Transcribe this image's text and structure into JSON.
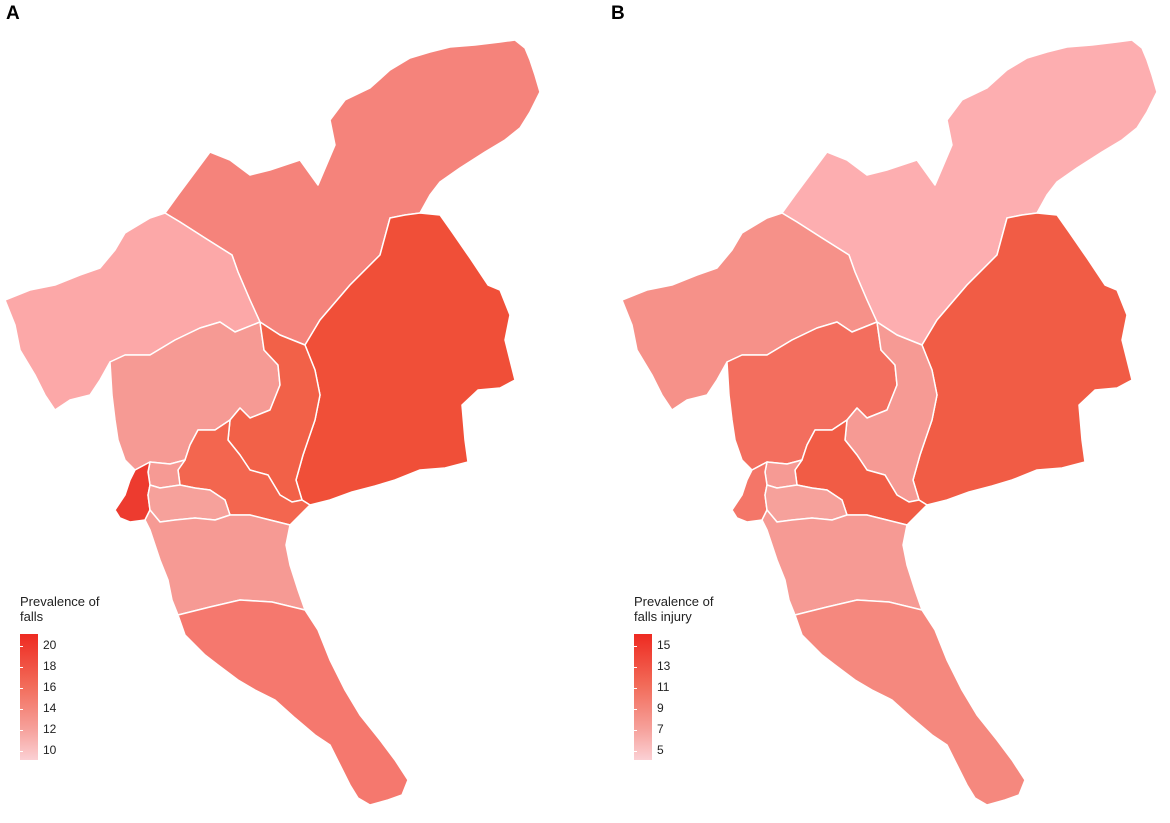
{
  "panels": [
    {
      "letter": "A",
      "legend": {
        "title": "Prevalence of\nfalls",
        "ticks": [
          "20",
          "18",
          "16",
          "14",
          "12",
          "10"
        ]
      },
      "colors": {
        "north": "#f5837b",
        "northwest": "#fca8a8",
        "east": "#f04f38",
        "west_central": "#f69a94",
        "central_east": "#f26148",
        "central": "#f3664f",
        "small_west": "#f69a94",
        "far_west": "#ed3b2f",
        "south_strip": "#f6a19b",
        "south_central": "#f69a94",
        "south_tail": "#f5786e"
      }
    },
    {
      "letter": "B",
      "legend": {
        "title": "Prevalence of\nfalls injury",
        "ticks": [
          "15",
          "13",
          "11",
          "9",
          "7",
          "5"
        ]
      },
      "colors": {
        "north": "#fdaeb0",
        "northwest": "#f69189",
        "east": "#f15c45",
        "west_central": "#f36e5e",
        "central_east": "#f69a94",
        "central": "#f15c45",
        "small_west": "#f69a94",
        "far_west": "#f47668",
        "south_strip": "#f6a19b",
        "south_central": "#f69a94",
        "south_tail": "#f5887e"
      }
    }
  ]
}
